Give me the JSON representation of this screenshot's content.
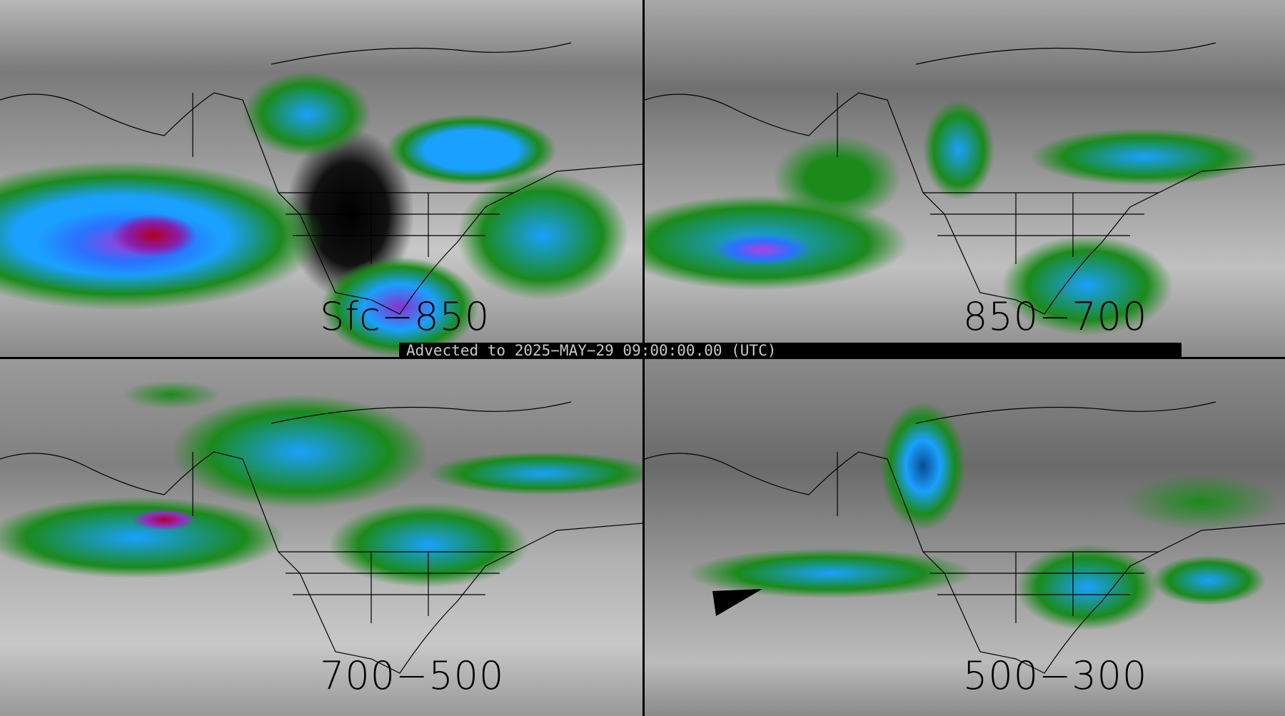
{
  "panels": [
    {
      "label": "Sfc−850"
    },
    {
      "label": "850−700"
    },
    {
      "label": "700−500"
    },
    {
      "label": "500−300"
    }
  ],
  "banner": {
    "text": "Advected to 2025−MAY−29 09:00:00.00 (UTC)"
  },
  "colors": {
    "low": "#1b8a1b",
    "mid": "#1aa0ff",
    "high": "#a040d8",
    "max": "#b00020",
    "background": "#000000"
  }
}
